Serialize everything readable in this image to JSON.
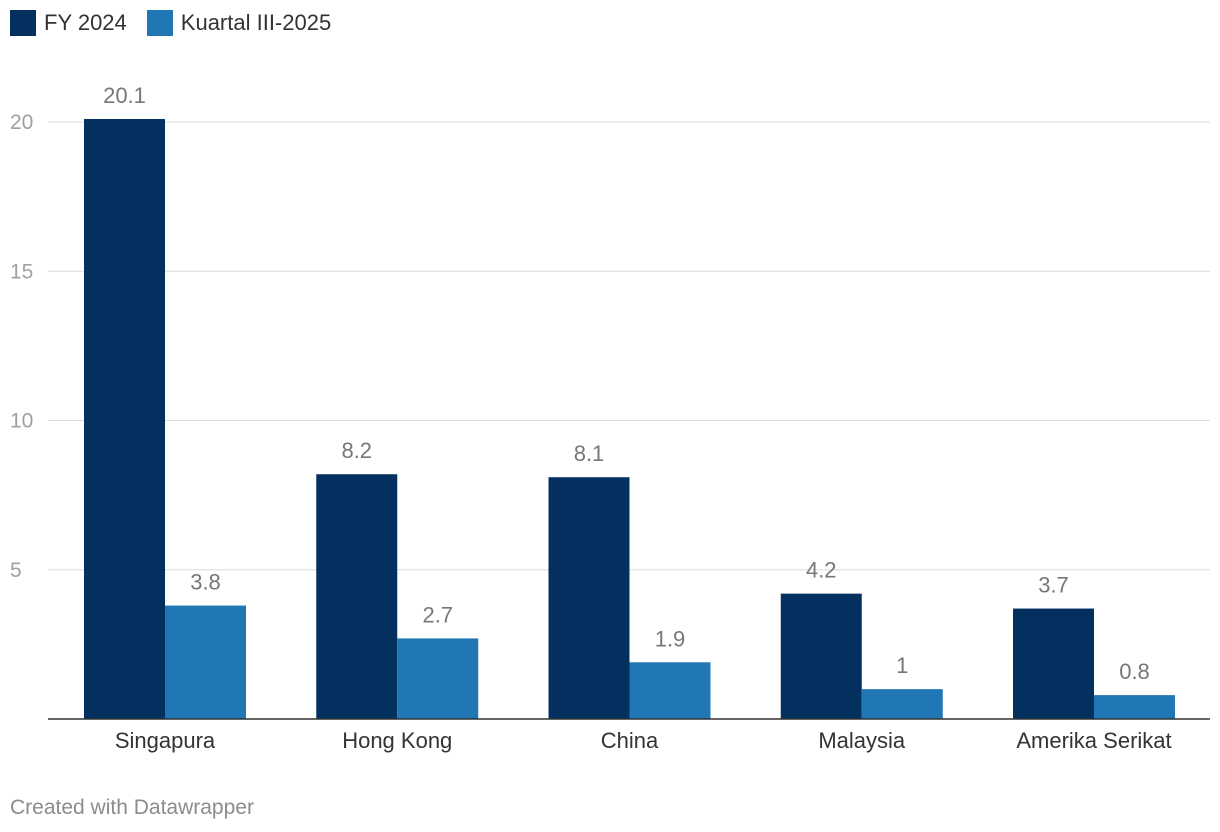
{
  "chart_data": {
    "type": "bar",
    "title": "",
    "xlabel": "",
    "ylabel": "",
    "categories": [
      "Singapura",
      "Hong Kong",
      "China",
      "Malaysia",
      "Amerika Serikat"
    ],
    "series": [
      {
        "name": "FY 2024",
        "color": "#03305f",
        "values": [
          20.1,
          8.2,
          8.1,
          4.2,
          3.7
        ],
        "labels": [
          "20.1",
          "8.2",
          "8.1",
          "4.2",
          "3.7"
        ]
      },
      {
        "name": "Kuartal III-2025",
        "color": "#2177b4",
        "values": [
          3.8,
          2.7,
          1.9,
          1.0,
          0.8
        ],
        "labels": [
          "3.8",
          "2.7",
          "1.9",
          "1",
          "0.8"
        ]
      }
    ],
    "ylim": [
      0,
      20
    ],
    "yticks": [
      5,
      10,
      15,
      20
    ],
    "ytick_labels": [
      "5",
      "10",
      "15",
      "20"
    ],
    "grid": true,
    "legend": "top-left"
  },
  "footer": {
    "credit": "Created with Datawrapper"
  }
}
